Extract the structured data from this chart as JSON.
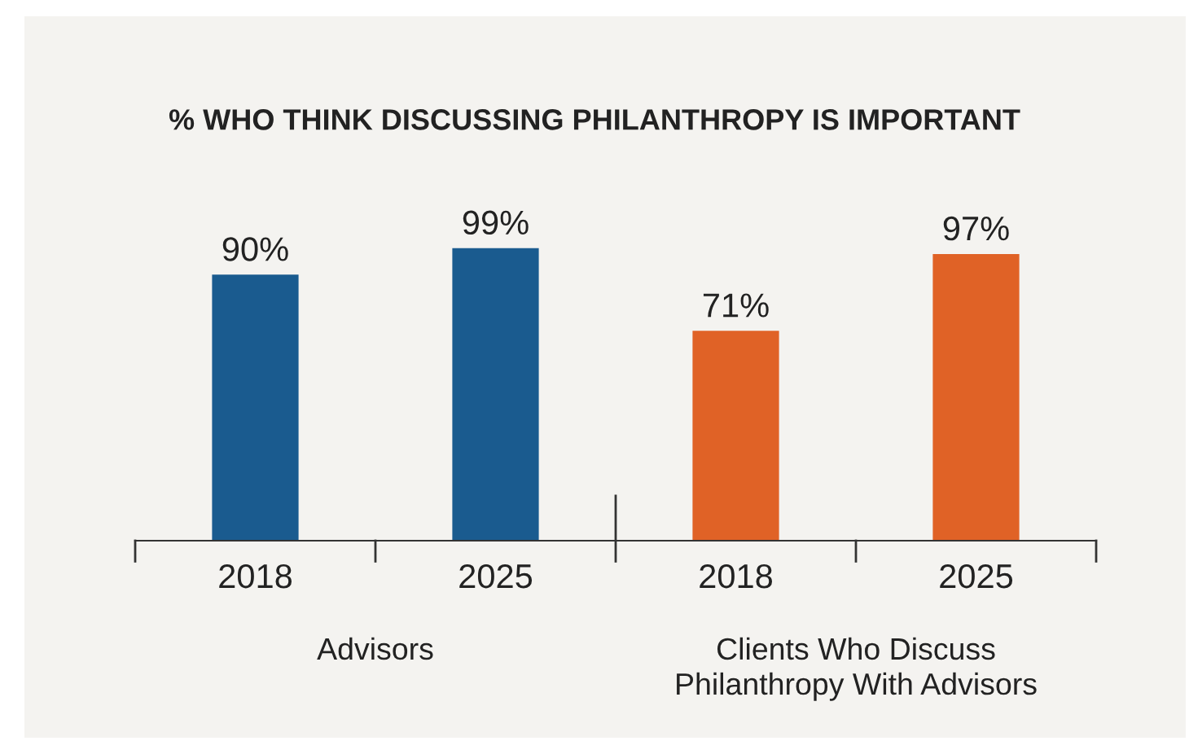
{
  "chart_data": {
    "type": "bar",
    "title": "% WHO THINK DISCUSSING PHILANTHROPY IS IMPORTANT",
    "categories": [
      "2018",
      "2025",
      "2018",
      "2025"
    ],
    "values": [
      90,
      99,
      71,
      97
    ],
    "colors": [
      "#1a5b8f",
      "#1a5b8f",
      "#e06226",
      "#e06226"
    ],
    "value_labels": [
      "90%",
      "99%",
      "71%",
      "97%"
    ],
    "annotations": [
      "Advisors",
      "Clients Who Discuss\nPhilanthropy With Advisors"
    ],
    "grid": false,
    "legend": false
  }
}
